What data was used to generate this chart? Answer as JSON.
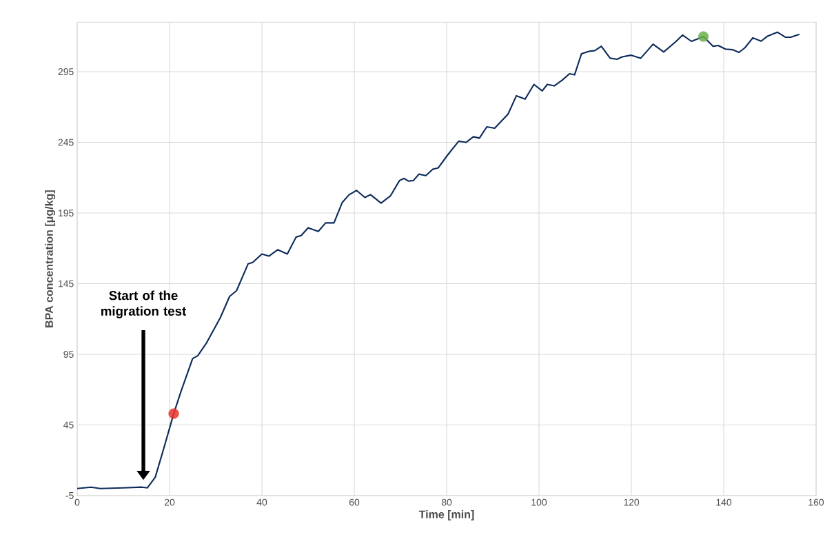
{
  "chart_data": {
    "type": "line",
    "xlabel": "Time [min]",
    "ylabel": "BPA concentration [μg/kg]",
    "xlim": [
      0,
      160
    ],
    "xticks": [
      0,
      20,
      40,
      60,
      80,
      100,
      120,
      140,
      160
    ],
    "ylim": [
      -5,
      330
    ],
    "yticks": [
      -5,
      45,
      95,
      145,
      195,
      245,
      295
    ],
    "grid": true,
    "line_style": "solid",
    "annotations": [
      "Start of the migration test"
    ],
    "series": [
      {
        "color": "#0d2b5a",
        "x": [
          0,
          3,
          5,
          10,
          14,
          15.2,
          16.9,
          18.8,
          20.9,
          22.5,
          25,
          26.1,
          28,
          31,
          33,
          34.5,
          37,
          38,
          40,
          41.5,
          43.4,
          45.5,
          47.4,
          48.5,
          50,
          52.2,
          53.8,
          55.6,
          57.4,
          58.9,
          60.5,
          62.3,
          63.5,
          65.8,
          67.8,
          69.8,
          70.8,
          71.7,
          72.8,
          74,
          75.5,
          77,
          78.2,
          80.2,
          82.6,
          84.2,
          85.8,
          87.1,
          88.7,
          90.4,
          93.3,
          95.1,
          97,
          98.9,
          100.7,
          101.8,
          103.3,
          105,
          106.6,
          107.7,
          109.2,
          110.8,
          112.1,
          113.5,
          115.4,
          116.9,
          118,
          119.9,
          122,
          124.7,
          127,
          129.7,
          131.1,
          133,
          135.6,
          137.7,
          138.8,
          140.4,
          141.9,
          143.3,
          144.6,
          146.3,
          148.1,
          149.4,
          151.6,
          153.4,
          154.5,
          156.4
        ],
        "values": [
          0,
          1,
          0,
          0.5,
          1,
          0.5,
          8,
          29,
          53,
          69,
          92,
          94,
          103,
          121,
          136,
          140,
          159,
          160,
          166,
          164.5,
          169,
          166,
          178,
          179,
          184.5,
          182,
          188,
          188,
          202.5,
          208,
          211,
          206,
          208,
          202,
          207,
          218,
          219.5,
          217.6,
          218,
          222.5,
          221.5,
          226,
          227,
          236,
          245.8,
          245,
          249,
          248,
          256,
          255,
          265,
          278,
          275.6,
          286,
          281.4,
          286,
          285,
          289,
          293.6,
          292.8,
          307.7,
          309.4,
          310,
          313,
          304.6,
          303.8,
          305.5,
          306.7,
          304.5,
          314.5,
          309,
          316.5,
          321,
          316.5,
          319.9,
          313,
          313.6,
          311,
          310.6,
          308.7,
          312,
          319,
          316.6,
          320,
          323,
          319.4,
          319.4,
          321.5
        ]
      },
      {
        "type": "scatter",
        "color": "#e8322a",
        "x": [
          20.9
        ],
        "values": [
          53
        ]
      },
      {
        "type": "scatter",
        "color": "#6ab04c",
        "x": [
          135.6
        ],
        "values": [
          319.9
        ]
      }
    ]
  }
}
